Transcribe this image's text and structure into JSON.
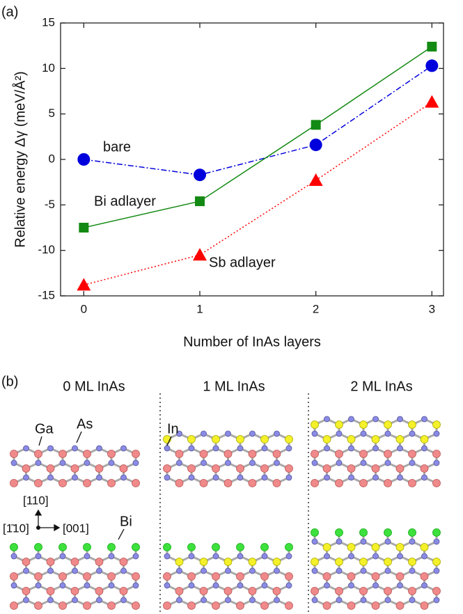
{
  "panel_labels": [
    "(a)",
    "(b)"
  ],
  "chart_data": {
    "type": "line",
    "xlabel": "Number of InAs layers",
    "ylabel": "Relative energy Δγ (meV/Å²)",
    "x": [
      0,
      1,
      2,
      3
    ],
    "xlim": [
      -0.2,
      3.1
    ],
    "xticks": [
      0,
      1,
      2,
      3
    ],
    "ylim": [
      -15,
      15
    ],
    "yticks": [
      -15,
      -10,
      -5,
      0,
      5,
      10,
      15
    ],
    "series": [
      {
        "name": "bare",
        "color": "#0000dd",
        "marker": "circle",
        "line_style": "dashdot",
        "values": [
          0,
          -1.7,
          1.6,
          10.3
        ]
      },
      {
        "name": "Bi adlayer",
        "color": "#138a13",
        "marker": "square",
        "line_style": "solid",
        "values": [
          -7.5,
          -4.6,
          3.8,
          12.4
        ]
      },
      {
        "name": "Sb adlayer",
        "color": "#ff0000",
        "marker": "triangle",
        "line_style": "dotted",
        "values": [
          -13.8,
          -10.5,
          -2.3,
          6.3
        ]
      }
    ]
  },
  "panel_b": {
    "columns": [
      "0 ML InAs",
      "1 ML InAs",
      "2 ML InAs"
    ],
    "atom_labels": [
      "Ga",
      "As",
      "In",
      "Bi"
    ],
    "directions": [
      "[110]",
      "[1̄10]",
      "[001]"
    ]
  }
}
